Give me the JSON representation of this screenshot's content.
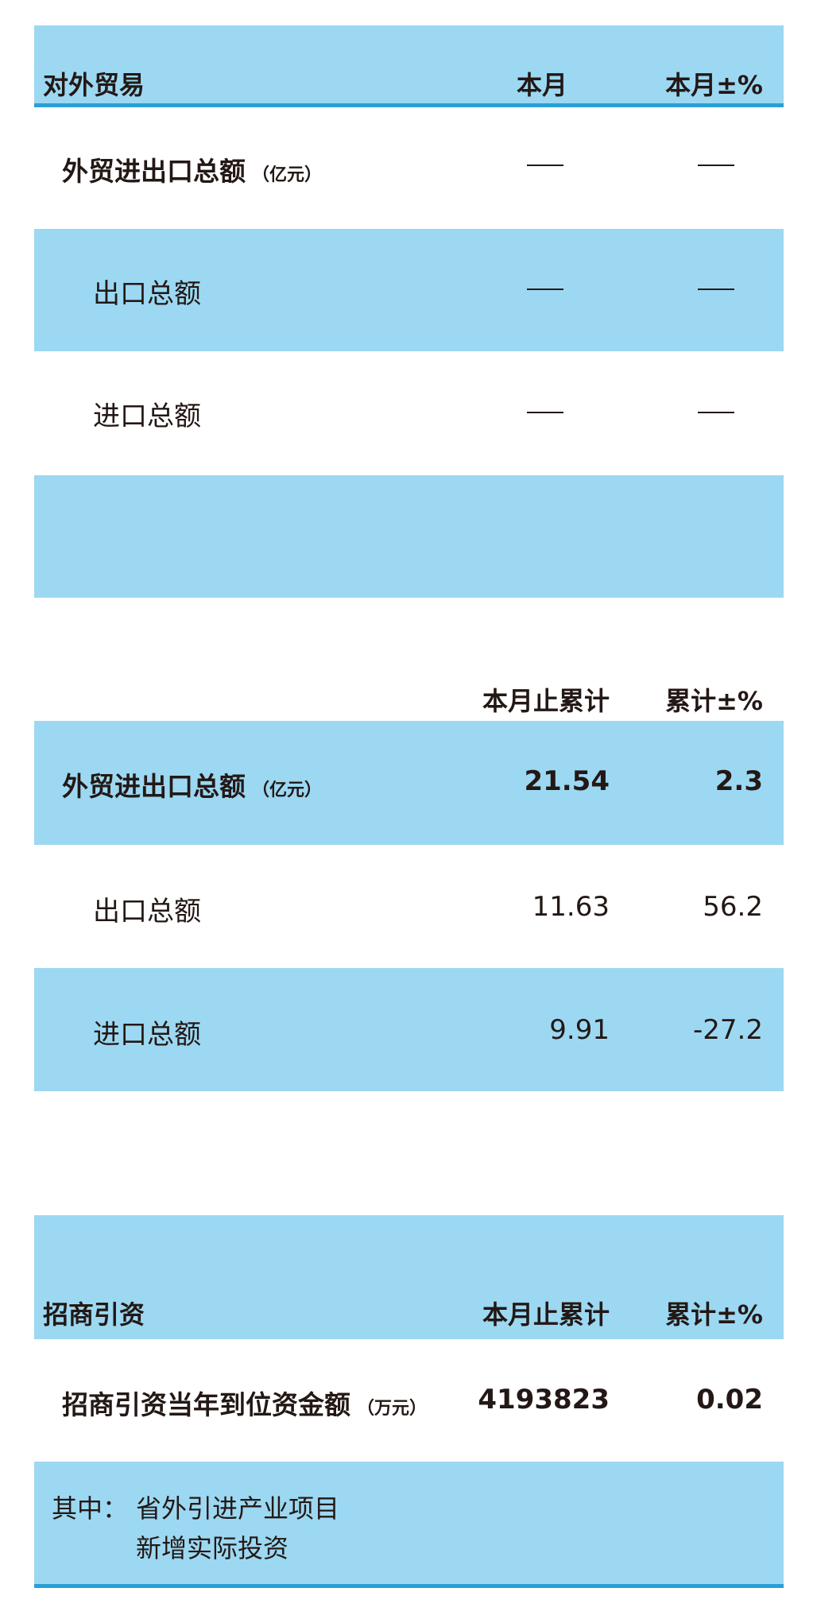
{
  "colors": {
    "band": "#9cd8f2",
    "rule": "#2a9fd6",
    "text": "#231815"
  },
  "trade_monthly": {
    "title": "对外贸易",
    "col1": "本月",
    "col2": "本月±%",
    "rows": [
      {
        "label": "外贸进出口总额",
        "unit": "（亿元）",
        "v1": "—",
        "v2": "—"
      },
      {
        "label": "出口总额",
        "v1": "—",
        "v2": "—"
      },
      {
        "label": "进口总额",
        "v1": "—",
        "v2": "—"
      }
    ]
  },
  "trade_cumulative": {
    "col1": "本月止累计",
    "col2": "累计±%",
    "rows": [
      {
        "label": "外贸进出口总额",
        "unit": "（亿元）",
        "v1": "21.54",
        "v2": "2.3"
      },
      {
        "label": "出口总额",
        "v1": "11.63",
        "v2": "56.2"
      },
      {
        "label": "进口总额",
        "v1": "9.91",
        "v2": "-27.2"
      }
    ]
  },
  "investment": {
    "title": "招商引资",
    "col1": "本月止累计",
    "col2": "累计±%",
    "rows": [
      {
        "label": "招商引资当年到位资金额",
        "unit": "（万元）",
        "v1": "4193823",
        "v2": "0.02"
      }
    ],
    "note_prefix": "其中：",
    "note_line1": "省外引进产业项目",
    "note_line2": "新增实际投资"
  }
}
